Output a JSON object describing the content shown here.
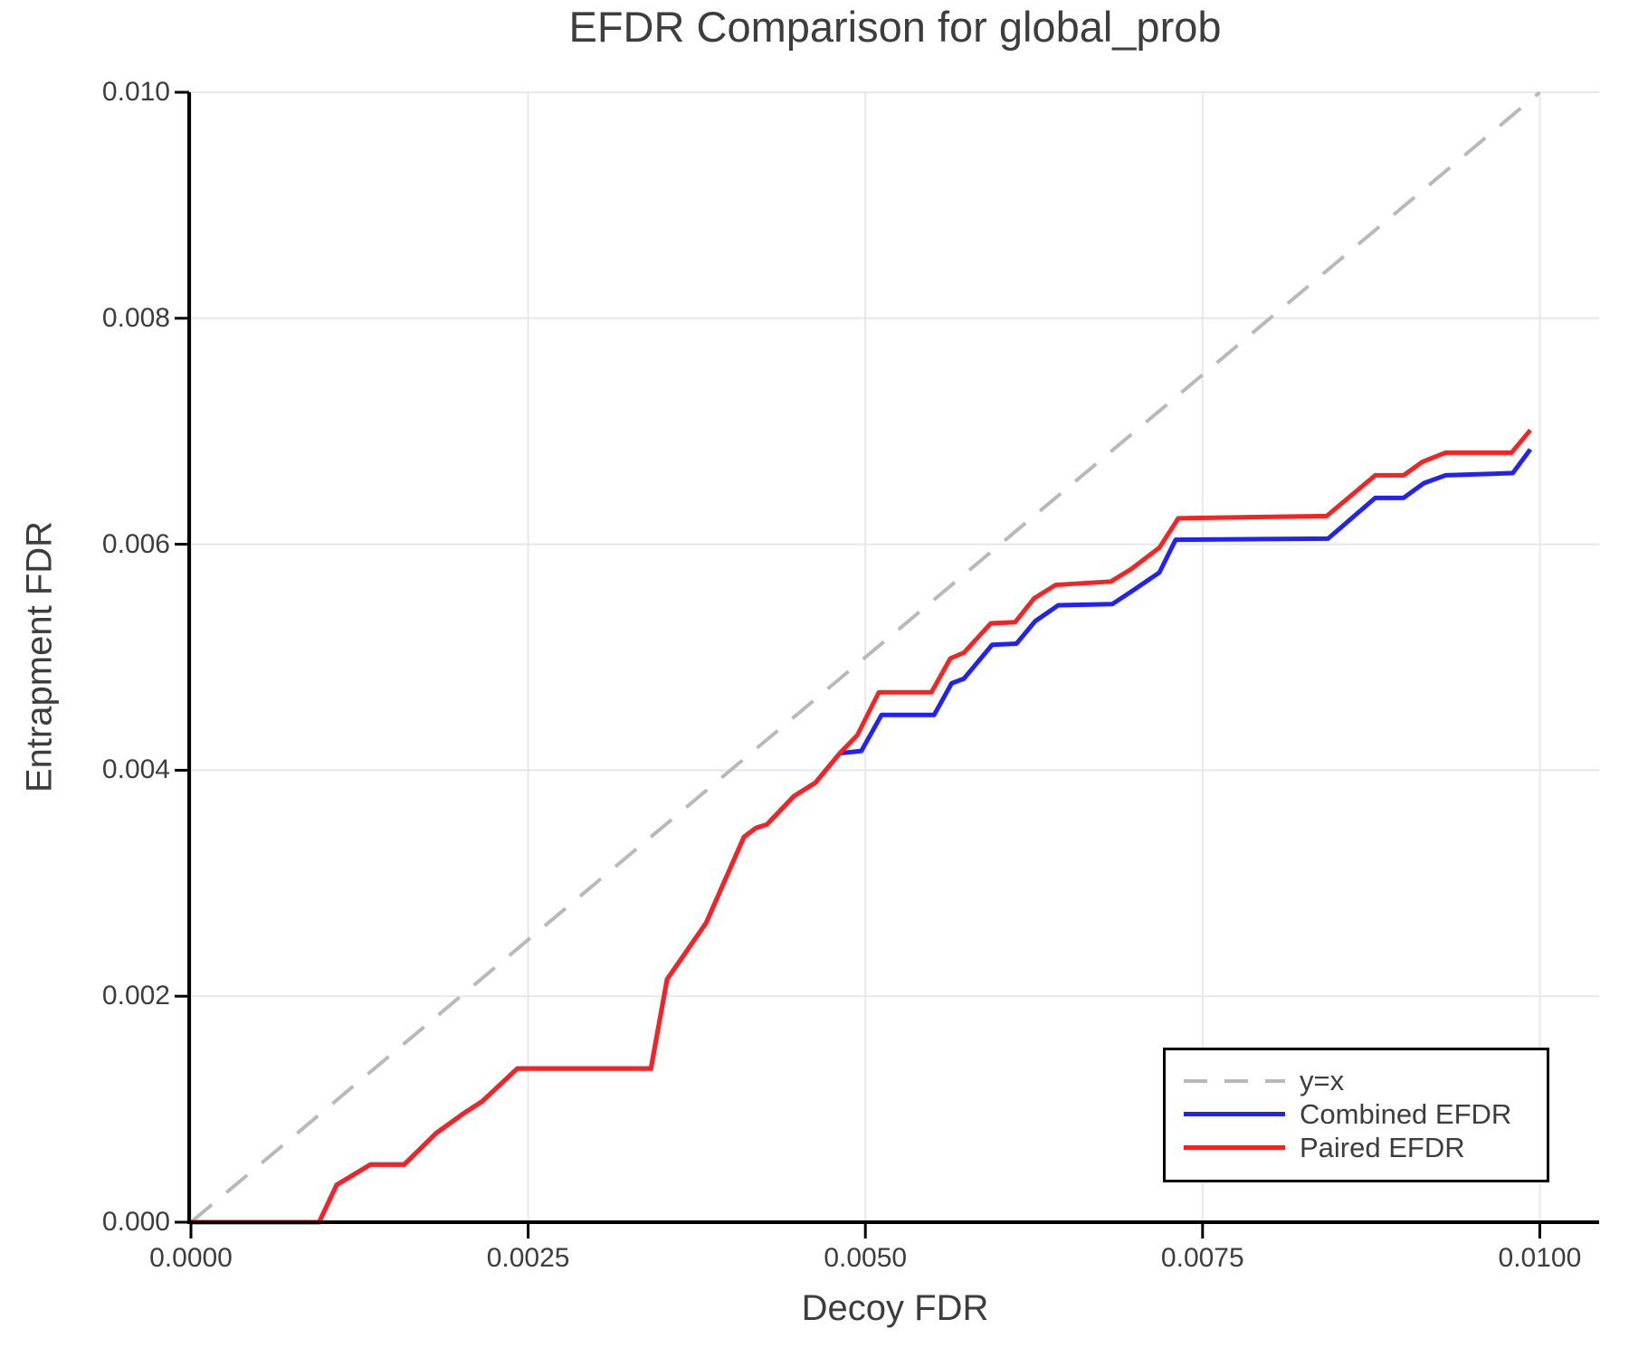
{
  "chart_data": {
    "type": "line",
    "title": "EFDR Comparison for global_prob",
    "xlabel": "Decoy FDR",
    "ylabel": "Entrapment FDR",
    "xlim": [
      0,
      0.01044
    ],
    "ylim": [
      0,
      0.01
    ],
    "grid": true,
    "legend_position": "lower right",
    "x_ticks": {
      "values": [
        0,
        0.0025,
        0.005,
        0.0075,
        0.01
      ],
      "labels": [
        "0.0000",
        "0.0025",
        "0.0050",
        "0.0075",
        "0.0100"
      ]
    },
    "y_ticks": {
      "values": [
        0,
        0.002,
        0.004,
        0.006,
        0.008,
        0.01
      ],
      "labels": [
        "0.000",
        "0.002",
        "0.004",
        "0.006",
        "0.008",
        "0.010"
      ]
    },
    "colors": {
      "grid": "#e8e8e8",
      "spine": "#000000",
      "text": "#3d3d3d",
      "identity_line": "#b9b9b9",
      "combined": "#2121fa",
      "paired": "#fa2121"
    },
    "series": [
      {
        "name": "y=x",
        "color": "#b9b9b9",
        "style": "dashed",
        "width": 4,
        "points": [
          [
            0,
            0
          ],
          [
            0.01,
            0.01
          ]
        ]
      },
      {
        "name": "Combined EFDR",
        "color": "#2121fa",
        "style": "solid",
        "width": 5,
        "points": [
          [
            0.0,
            0.0
          ],
          [
            0.00095,
            0.0
          ],
          [
            0.00108,
            0.00033
          ],
          [
            0.00133,
            0.00051
          ],
          [
            0.00158,
            0.00051
          ],
          [
            0.00182,
            0.00079
          ],
          [
            0.00203,
            0.00097
          ],
          [
            0.00216,
            0.00107
          ],
          [
            0.00242,
            0.00136
          ],
          [
            0.00341,
            0.00136
          ],
          [
            0.00353,
            0.00215
          ],
          [
            0.00382,
            0.00265
          ],
          [
            0.0041,
            0.00341
          ],
          [
            0.00419,
            0.00349
          ],
          [
            0.00427,
            0.00352
          ],
          [
            0.00447,
            0.00377
          ],
          [
            0.00463,
            0.00389
          ],
          [
            0.00481,
            0.00415
          ],
          [
            0.00497,
            0.00417
          ],
          [
            0.00512,
            0.00449
          ],
          [
            0.00551,
            0.00449
          ],
          [
            0.00564,
            0.00477
          ],
          [
            0.00573,
            0.00481
          ],
          [
            0.00594,
            0.00511
          ],
          [
            0.00612,
            0.00512
          ],
          [
            0.00626,
            0.00532
          ],
          [
            0.00643,
            0.00546
          ],
          [
            0.00683,
            0.00547
          ],
          [
            0.00697,
            0.00558
          ],
          [
            0.00718,
            0.00575
          ],
          [
            0.0073,
            0.00604
          ],
          [
            0.00843,
            0.00605
          ],
          [
            0.00878,
            0.00641
          ],
          [
            0.00899,
            0.00641
          ],
          [
            0.00914,
            0.00654
          ],
          [
            0.0093,
            0.00661
          ],
          [
            0.0098,
            0.00663
          ],
          [
            0.00993,
            0.00684
          ]
        ]
      },
      {
        "name": "Paired EFDR",
        "color": "#fa2121",
        "style": "solid",
        "width": 5,
        "points": [
          [
            0.0,
            0.0
          ],
          [
            0.00095,
            0.0
          ],
          [
            0.00108,
            0.00033
          ],
          [
            0.00133,
            0.00051
          ],
          [
            0.00158,
            0.00051
          ],
          [
            0.00182,
            0.00079
          ],
          [
            0.00203,
            0.00097
          ],
          [
            0.00216,
            0.00107
          ],
          [
            0.00242,
            0.00136
          ],
          [
            0.00341,
            0.00136
          ],
          [
            0.00353,
            0.00215
          ],
          [
            0.00382,
            0.00265
          ],
          [
            0.0041,
            0.00341
          ],
          [
            0.00419,
            0.00349
          ],
          [
            0.00427,
            0.00352
          ],
          [
            0.00447,
            0.00377
          ],
          [
            0.00463,
            0.00389
          ],
          [
            0.00481,
            0.00415
          ],
          [
            0.00494,
            0.00431
          ],
          [
            0.0051,
            0.00469
          ],
          [
            0.00549,
            0.00469
          ],
          [
            0.00563,
            0.00499
          ],
          [
            0.00573,
            0.00504
          ],
          [
            0.00593,
            0.0053
          ],
          [
            0.00611,
            0.00531
          ],
          [
            0.00625,
            0.00552
          ],
          [
            0.00641,
            0.00564
          ],
          [
            0.00682,
            0.00567
          ],
          [
            0.00697,
            0.00578
          ],
          [
            0.00718,
            0.00597
          ],
          [
            0.00732,
            0.00623
          ],
          [
            0.00842,
            0.00625
          ],
          [
            0.00878,
            0.00661
          ],
          [
            0.00899,
            0.00661
          ],
          [
            0.00913,
            0.00673
          ],
          [
            0.0093,
            0.00681
          ],
          [
            0.00979,
            0.00681
          ],
          [
            0.00993,
            0.00701
          ]
        ]
      }
    ]
  }
}
